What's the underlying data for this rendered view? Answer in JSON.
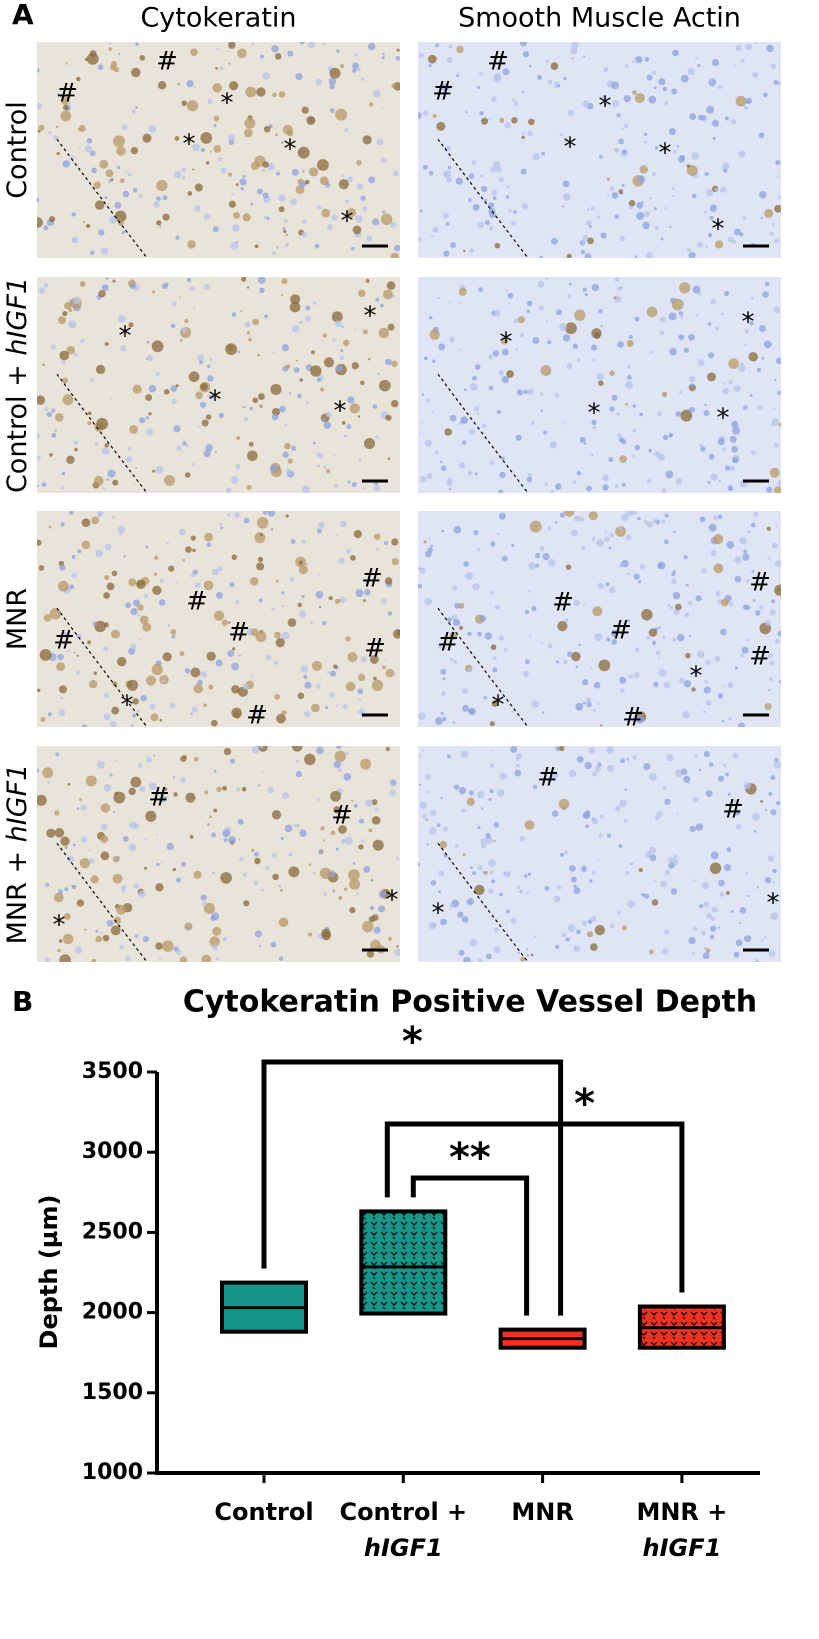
{
  "panel_a": {
    "label": "A",
    "columns": [
      "Cytokeratin",
      "Smooth Muscle Actin"
    ],
    "rows": [
      {
        "label": [
          "Control"
        ],
        "images": [
          {
            "markers": [
              "#",
              "#",
              "*",
              "*",
              "*",
              "*"
            ]
          },
          {
            "markers": [
              "#",
              "#",
              "*",
              "*",
              "*",
              "*"
            ]
          }
        ]
      },
      {
        "label": [
          "Control + ",
          "hIGF1"
        ],
        "images": [
          {
            "markers": [
              "*",
              "*",
              "*",
              "*"
            ]
          },
          {
            "markers": [
              "*",
              "*",
              "*",
              "*"
            ]
          }
        ]
      },
      {
        "label": [
          "MNR"
        ],
        "images": [
          {
            "markers": [
              "#",
              "#",
              "#",
              "#",
              "#",
              "*",
              "#"
            ]
          },
          {
            "markers": [
              "#",
              "#",
              "#",
              "#",
              "#",
              "*",
              "*",
              "#"
            ]
          }
        ]
      },
      {
        "label": [
          "MNR + ",
          "hIGF1"
        ],
        "images": [
          {
            "markers": [
              "#",
              "#",
              "*",
              "*"
            ]
          },
          {
            "markers": [
              "#",
              "#",
              "*",
              "*"
            ]
          }
        ]
      }
    ]
  },
  "chart_data": {
    "type": "box",
    "panel_label": "B",
    "title": "Cytokeratin Positive Vessel Depth",
    "y_label": "Depth (µm)",
    "categories": [
      [
        "Control"
      ],
      [
        "Control +",
        "hIGF1"
      ],
      [
        "MNR"
      ],
      [
        "MNR +",
        "hIGF1"
      ]
    ],
    "boxes": [
      {
        "low": 1881,
        "median": 2031,
        "high": 2187,
        "color": "#17958a",
        "hatched": false
      },
      {
        "low": 1994,
        "median": 2285,
        "high": 2631,
        "color": "#17958a",
        "hatched": true
      },
      {
        "low": 1781,
        "median": 1838,
        "high": 1894,
        "color": "#ee3322",
        "hatched": false
      },
      {
        "low": 1781,
        "median": 1906,
        "high": 2038,
        "color": "#ee3322",
        "hatched": true
      }
    ],
    "comparisons": [
      {
        "from": 0,
        "to": 2,
        "label": "*"
      },
      {
        "from": 1,
        "to": 3,
        "label": "*"
      },
      {
        "from": 1,
        "to": 2,
        "label": "**"
      }
    ],
    "ylim": [
      1000,
      3500
    ],
    "yticks": [
      1000,
      1500,
      2000,
      2500,
      3000,
      3500
    ]
  }
}
